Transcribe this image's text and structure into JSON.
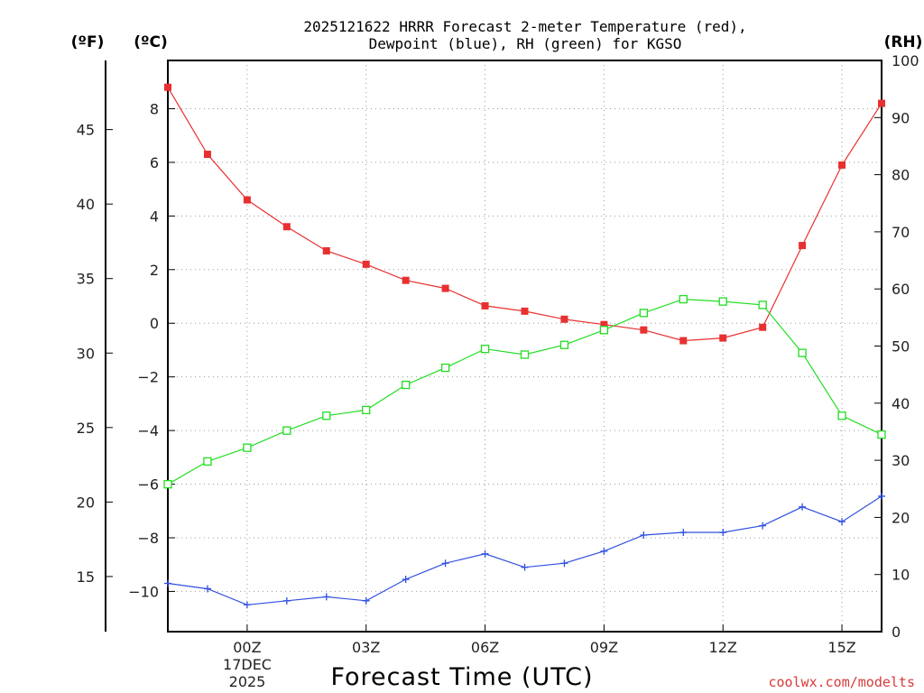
{
  "chart_data": {
    "type": "line",
    "title_line1": "2025121622 HRRR Forecast 2-meter Temperature (red),",
    "title_line2": "Dewpoint (blue), RH (green) for KGSO",
    "xlabel": "Forecast Time (UTC)",
    "credit": "coolwx.com/modelts",
    "units": {
      "fahrenheit": "(ºF)",
      "celsius": "(ºC)",
      "rh": "(RH)"
    },
    "x_hours": [
      -2,
      -1,
      0,
      1,
      2,
      3,
      4,
      5,
      6,
      7,
      8,
      9,
      10,
      11,
      12,
      13,
      14,
      15,
      16
    ],
    "x_range": [
      -2,
      16
    ],
    "x_ticks": [
      {
        "hour": 0,
        "label": "00Z"
      },
      {
        "hour": 3,
        "label": "03Z"
      },
      {
        "hour": 6,
        "label": "06Z"
      },
      {
        "hour": 9,
        "label": "09Z"
      },
      {
        "hour": 12,
        "label": "12Z"
      },
      {
        "hour": 15,
        "label": "15Z"
      }
    ],
    "date_label": {
      "day": "17DEC",
      "year": "2025"
    },
    "celsius_axis": {
      "range": [
        -11.5,
        9.8
      ],
      "ticks": [
        -10,
        -8,
        -6,
        -4,
        -2,
        0,
        2,
        4,
        6,
        8
      ],
      "tick_labels": [
        "−10",
        "−8",
        "−6",
        "−4",
        "−2",
        "0",
        "2",
        "4",
        "6",
        "8"
      ]
    },
    "fahrenheit_axis": {
      "ticks": [
        15,
        20,
        25,
        30,
        35,
        40,
        45
      ],
      "tick_labels": [
        "15",
        "20",
        "25",
        "30",
        "35",
        "40",
        "45"
      ]
    },
    "rh_axis": {
      "range": [
        0,
        100
      ],
      "ticks": [
        0,
        10,
        20,
        30,
        40,
        50,
        60,
        70,
        80,
        90,
        100
      ],
      "tick_labels": [
        "0",
        "10",
        "20",
        "30",
        "40",
        "50",
        "60",
        "70",
        "80",
        "90",
        "100"
      ]
    },
    "series": [
      {
        "name": "Temperature",
        "axis": "celsius",
        "color": "#e83030",
        "marker": "filled-square",
        "values": [
          8.8,
          6.3,
          4.6,
          3.6,
          2.7,
          2.2,
          1.6,
          1.3,
          0.65,
          0.45,
          0.15,
          -0.05,
          -0.25,
          -0.65,
          -0.55,
          -0.15,
          2.9,
          5.9,
          8.2
        ]
      },
      {
        "name": "Dewpoint",
        "axis": "celsius",
        "color": "#3050e0",
        "marker": "plus",
        "values": [
          -9.7,
          -9.9,
          -10.5,
          -10.35,
          -10.2,
          -10.35,
          -9.55,
          -8.95,
          -8.6,
          -9.1,
          -8.95,
          -8.5,
          -7.9,
          -7.8,
          -7.8,
          -7.55,
          -6.85,
          -7.4,
          -6.45
        ]
      },
      {
        "name": "RH",
        "axis": "rh",
        "color": "#22dd22",
        "marker": "open-square",
        "values": [
          25.8,
          29.8,
          32.2,
          35.2,
          37.8,
          38.8,
          43.2,
          46.2,
          49.5,
          48.5,
          50.2,
          52.8,
          55.8,
          58.2,
          57.8,
          57.2,
          48.8,
          37.8,
          34.5
        ]
      }
    ]
  }
}
